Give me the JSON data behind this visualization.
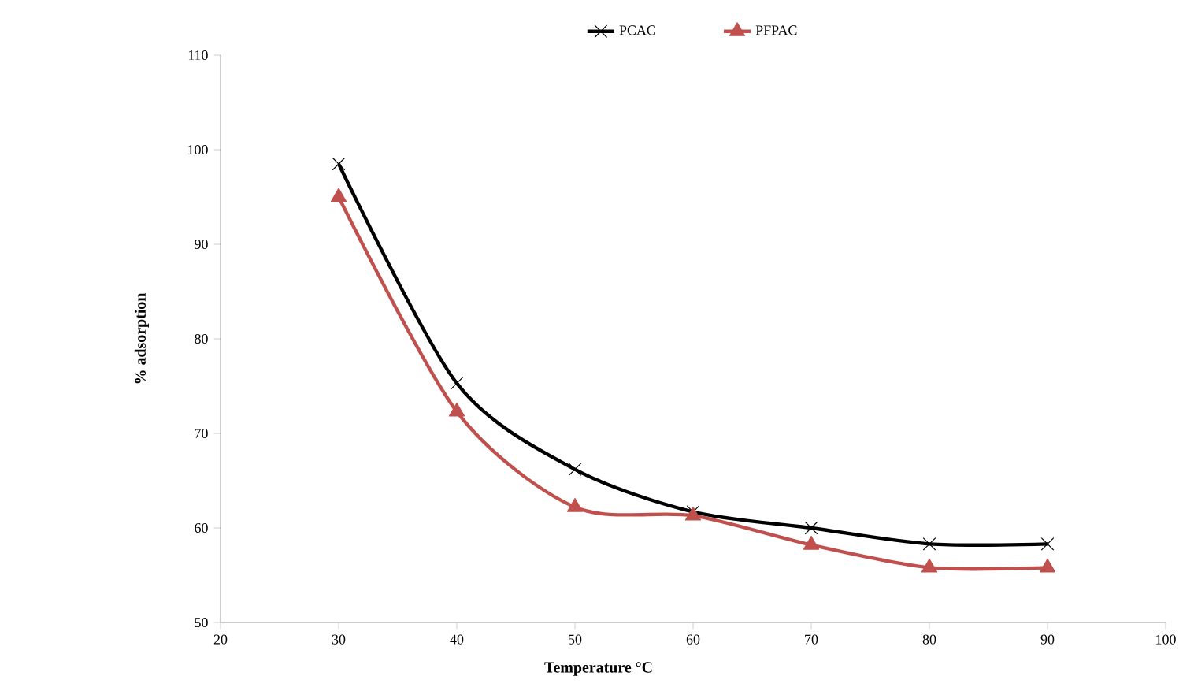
{
  "chart_data": {
    "type": "line",
    "xlabel": "Temperature °C",
    "ylabel": "% adsorption",
    "xlim": [
      20,
      100
    ],
    "ylim": [
      50,
      110
    ],
    "xticks": [
      20,
      30,
      40,
      50,
      60,
      70,
      80,
      90,
      100
    ],
    "yticks": [
      50,
      60,
      70,
      80,
      90,
      100,
      110
    ],
    "grid": false,
    "legend": "top",
    "line_style": "solid",
    "series": [
      {
        "name": "PCAC",
        "color": "#000000",
        "marker": "cross",
        "x": [
          30,
          40,
          50,
          60,
          70,
          80,
          90
        ],
        "values": [
          98.5,
          75.3,
          66.2,
          61.7,
          60.0,
          58.3,
          58.3
        ]
      },
      {
        "name": "PFPAC",
        "color": "#c0504d",
        "marker": "triangle",
        "x": [
          30,
          40,
          50,
          60,
          70,
          80,
          90
        ],
        "values": [
          95.0,
          72.3,
          62.2,
          61.3,
          58.2,
          55.8,
          55.8
        ]
      }
    ]
  }
}
